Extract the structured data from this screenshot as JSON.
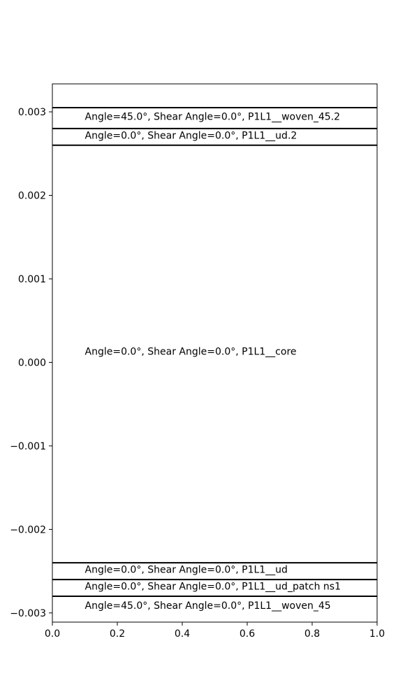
{
  "chart_data": {
    "type": "line",
    "title": "",
    "xlabel": "",
    "ylabel": "",
    "xlim": [
      0.0,
      1.0
    ],
    "ylim": [
      -0.00311,
      0.003335
    ],
    "grid": false,
    "x_ticks": [
      {
        "value": 0.0,
        "label": "0.0"
      },
      {
        "value": 0.2,
        "label": "0.2"
      },
      {
        "value": 0.4,
        "label": "0.4"
      },
      {
        "value": 0.6,
        "label": "0.6"
      },
      {
        "value": 0.8,
        "label": "0.8"
      },
      {
        "value": 1.0,
        "label": "1.0"
      }
    ],
    "y_ticks": [
      {
        "value": -0.003,
        "label": "−0.003"
      },
      {
        "value": -0.002,
        "label": "−0.002"
      },
      {
        "value": -0.001,
        "label": "−0.001"
      },
      {
        "value": 0.0,
        "label": "0.000"
      },
      {
        "value": 0.001,
        "label": "0.001"
      },
      {
        "value": 0.002,
        "label": "0.002"
      },
      {
        "value": 0.003,
        "label": "0.003"
      }
    ],
    "boundaries": [
      -0.0028,
      -0.0026,
      -0.0024,
      0.0026,
      0.0028,
      0.00305
    ],
    "layers": [
      {
        "label": "Angle=45.0°, Shear Angle=0.0°, P1L1__woven_45",
        "x": 0.1,
        "y": -0.00291
      },
      {
        "label": "Angle=0.0°, Shear Angle=0.0°, P1L1__ud_patch ns1",
        "x": 0.1,
        "y": -0.00268
      },
      {
        "label": "Angle=0.0°, Shear Angle=0.0°, P1L1__ud",
        "x": 0.1,
        "y": -0.00248
      },
      {
        "label": "Angle=0.0°, Shear Angle=0.0°, P1L1__core",
        "x": 0.1,
        "y": 0.000135
      },
      {
        "label": "Angle=0.0°, Shear Angle=0.0°, P1L1__ud.2",
        "x": 0.1,
        "y": 0.00272
      },
      {
        "label": "Angle=45.0°, Shear Angle=0.0°, P1L1__woven_45.2",
        "x": 0.1,
        "y": 0.002945
      }
    ]
  }
}
